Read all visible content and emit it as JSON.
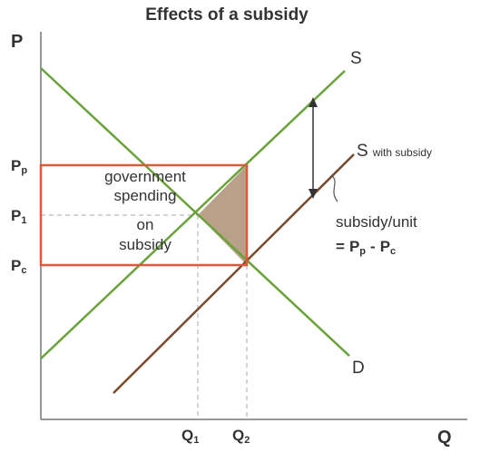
{
  "title": "Effects of a subsidy",
  "axes": {
    "y_label": "P",
    "x_label": "Q"
  },
  "price_labels": [
    {
      "main": "P",
      "sub": "p"
    },
    {
      "main": "P",
      "sub": "1"
    },
    {
      "main": "P",
      "sub": "c"
    }
  ],
  "quantity_labels": [
    {
      "main": "Q",
      "sub": "1"
    },
    {
      "main": "Q",
      "sub": "2"
    }
  ],
  "curves": {
    "supply": "S",
    "supply_subsidy": {
      "main": "S",
      "note": "with subsidy"
    },
    "demand": "D"
  },
  "area_label": [
    "government",
    "spending",
    "on",
    "subsidy"
  ],
  "annotation": {
    "line1": "subsidy/unit",
    "line2": {
      "prefix": "=",
      "a": {
        "main": "P",
        "sub": "p"
      },
      "minus": "-",
      "b": {
        "main": "P",
        "sub": "c"
      }
    }
  }
}
